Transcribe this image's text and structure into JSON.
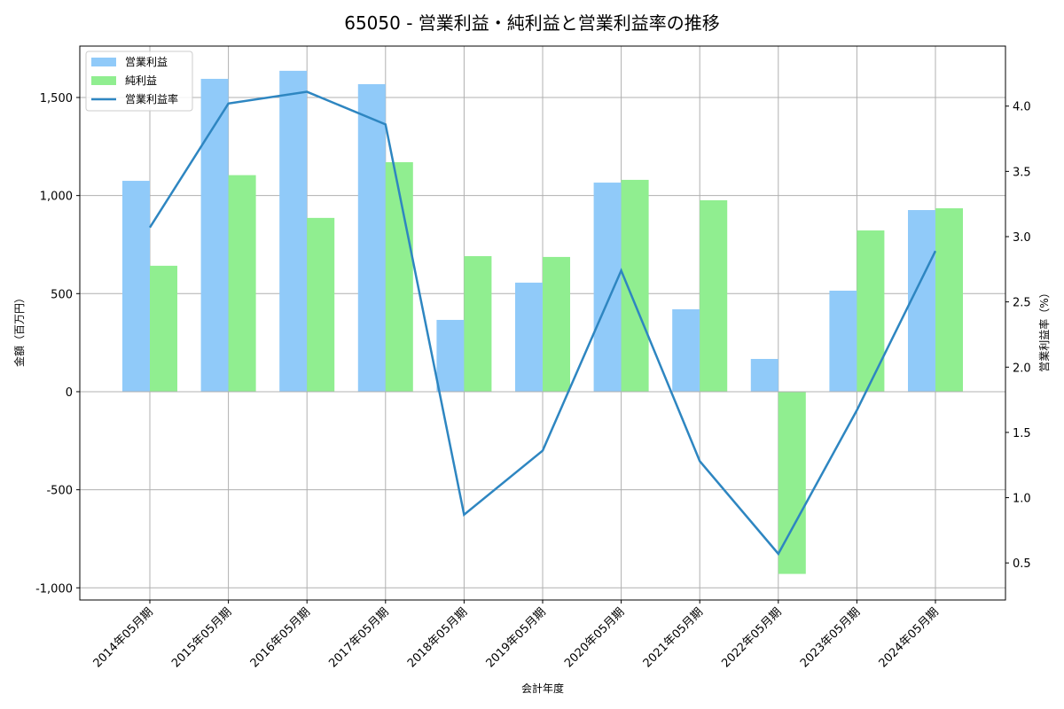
{
  "chart_data": {
    "type": "bar+line",
    "title": "65050 - 営業利益・純利益と営業利益率の推移",
    "xlabel": "会計年度",
    "ylabel": "金額（百万円）",
    "ylabel_right": "営業利益率（%）",
    "categories": [
      "2014年05月期",
      "2015年05月期",
      "2016年05月期",
      "2017年05月期",
      "2018年05月期",
      "2019年05月期",
      "2020年05月期",
      "2021年05月期",
      "2022年05月期",
      "2023年05月期",
      "2024年05月期"
    ],
    "series": [
      {
        "name": "営業利益",
        "type": "bar",
        "axis": "left",
        "color": "#90caf9",
        "values": [
          1075,
          1595,
          1636,
          1568,
          366,
          556,
          1066,
          420,
          167,
          515,
          926
        ]
      },
      {
        "name": "純利益",
        "type": "bar",
        "axis": "left",
        "color": "#90ee90",
        "values": [
          642,
          1104,
          886,
          1170,
          691,
          687,
          1080,
          976,
          -929,
          822,
          935
        ]
      },
      {
        "name": "営業利益率",
        "type": "line",
        "axis": "right",
        "color": "#2e86c1",
        "values": [
          3.07,
          4.02,
          4.11,
          3.86,
          0.87,
          1.36,
          2.74,
          1.28,
          0.57,
          1.67,
          2.89
        ]
      }
    ],
    "ylim": [
      -1062,
      1762
    ],
    "ylim_right": [
      0.216,
      4.46
    ],
    "yticks": [
      -1000,
      -500,
      0,
      500,
      1000,
      1500
    ],
    "ytick_labels": [
      "-1,000",
      "-500",
      "0",
      "500",
      "1,000",
      "1,500"
    ],
    "yticks_right": [
      0.5,
      1.0,
      1.5,
      2.0,
      2.5,
      3.0,
      3.5,
      4.0
    ],
    "ytick_labels_right": [
      "0.5",
      "1.0",
      "1.5",
      "2.0",
      "2.5",
      "3.0",
      "3.5",
      "4.0"
    ],
    "grid": true,
    "legend_position": "upper left"
  }
}
